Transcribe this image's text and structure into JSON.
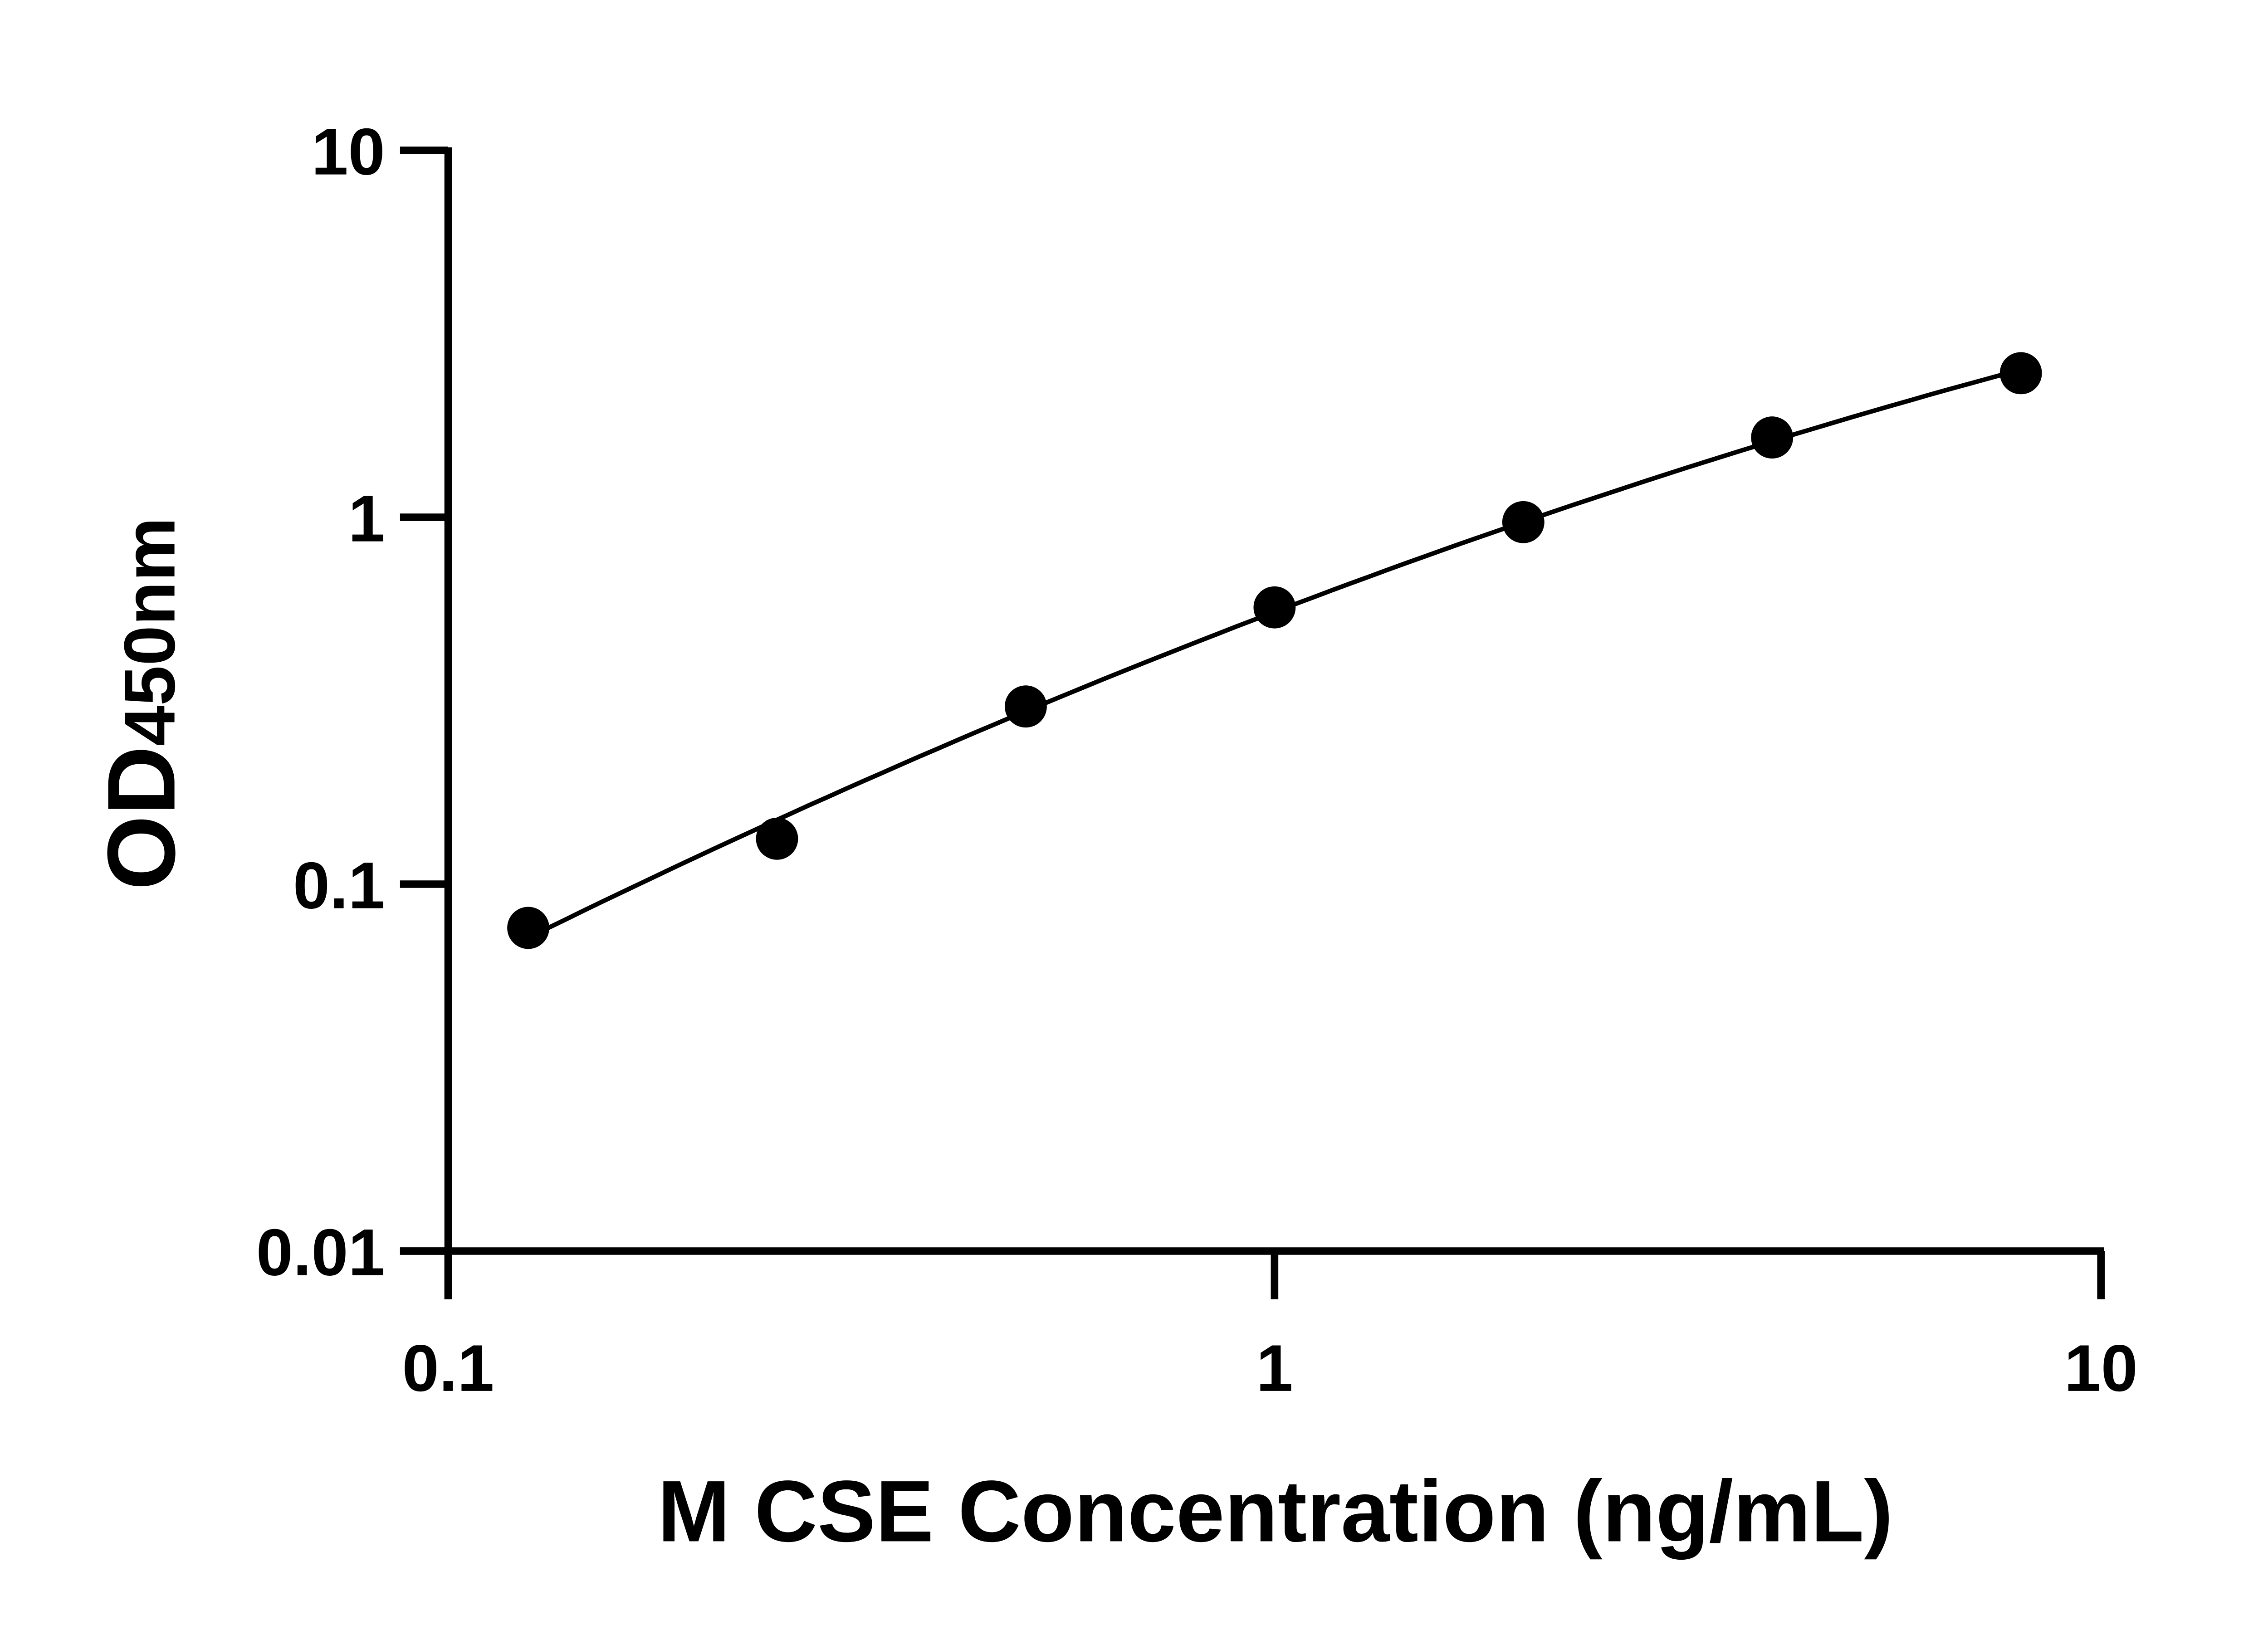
{
  "chart_data": {
    "type": "scatter",
    "title": "",
    "xlabel": "M CSE Concentration (ng/mL)",
    "ylabel_main": "OD",
    "ylabel_sub": "450nm",
    "xscale": "log",
    "yscale": "log",
    "xlim": [
      0.1,
      10
    ],
    "ylim": [
      0.01,
      10
    ],
    "xticks": [
      0.1,
      1,
      10
    ],
    "xtick_labels": [
      "0.1",
      "1",
      "10"
    ],
    "yticks": [
      0.01,
      0.1,
      1,
      10
    ],
    "ytick_labels": [
      "0.01",
      "0.1",
      "1",
      "10"
    ],
    "grid": false,
    "fit_line": true,
    "marker_color": "#000000",
    "series": [
      {
        "x": [
          0.125,
          0.25,
          0.5,
          1,
          2,
          4,
          8
        ],
        "y": [
          0.076,
          0.133,
          0.305,
          0.568,
          0.97,
          1.65,
          2.47
        ]
      }
    ]
  }
}
